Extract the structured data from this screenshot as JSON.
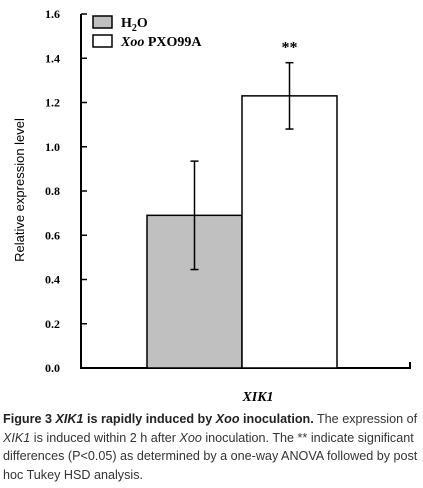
{
  "chart_data": {
    "type": "bar",
    "categories": [
      "XIK1"
    ],
    "xlabel": "XIK1",
    "ylabel": "Relative expression level",
    "ylim": [
      0,
      1.6
    ],
    "yticks": [
      "0.0",
      "0.2",
      "0.4",
      "0.6",
      "0.8",
      "1.0",
      "1.2",
      "1.4",
      "1.6"
    ],
    "series": [
      {
        "name": "H2O",
        "values": [
          0.69
        ],
        "error": [
          0.245
        ],
        "color": "#c0c0c0",
        "annotation": ""
      },
      {
        "name": "Xoo PXO99A",
        "values": [
          1.23
        ],
        "error": [
          0.15
        ],
        "color": "#ffffff",
        "annotation": "**"
      }
    ],
    "legend_position": "top-left",
    "grid": false
  },
  "caption": {
    "label_prefix": "Figure 3 ",
    "label_gene": "XIK1",
    "label_mid": " is rapidly induced by ",
    "label_pathogen": "Xoo",
    "label_end": " inoculation.",
    "body_1": " The expression of ",
    "body_gene": "XIK1",
    "body_2": " is induced within 2 h after ",
    "body_pathogen": "Xoo",
    "body_3": " inoculation. The ** indicate significant differences (P<0.05) as determined by a one-way ANOVA followed by post hoc Tukey HSD analysis."
  }
}
